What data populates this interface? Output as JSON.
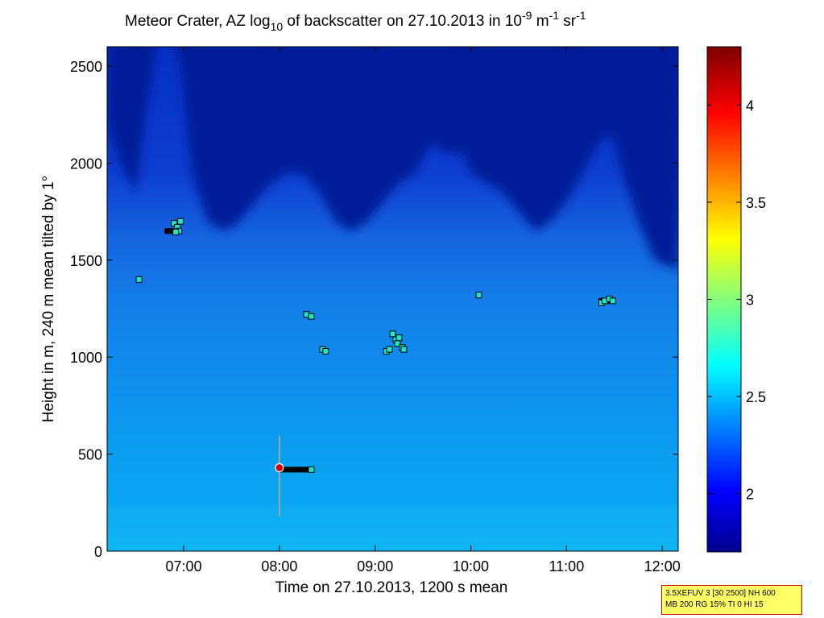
{
  "chart_data": {
    "type": "heatmap",
    "title_prefix": "Meteor Crater, AZ log",
    "title_sub": "10",
    "title_mid": " of backscatter on 27.10.2013 in 10",
    "title_exp1": "-9",
    "title_unit1": " m",
    "title_exp2": "-1",
    "title_unit2": " sr",
    "title_exp3": "-1",
    "xlabel": "Time on 27.10.2013, 1200 s mean",
    "ylabel": "Height in m, 240 m mean tilted by 1°",
    "xlim": [
      "06:12",
      "12:10"
    ],
    "ylim": [
      0,
      2600
    ],
    "xticks": [
      "07:00",
      "08:00",
      "09:00",
      "10:00",
      "11:00",
      "12:00"
    ],
    "yticks": [
      0,
      500,
      1000,
      1500,
      2000,
      2500
    ],
    "colorbar": {
      "min": 1.7,
      "max": 4.3,
      "ticks": [
        2,
        2.5,
        3,
        3.5,
        4
      ],
      "colormap": "jet"
    },
    "colors": {
      "background_max": "#001f99",
      "field_low": "#0c50e6",
      "field_mid": "#1e7ff4",
      "surface": "#0aa8f2"
    },
    "cloud_points": [
      {
        "time": "06:32",
        "height": 1400
      },
      {
        "time": "06:54",
        "height": 1690
      },
      {
        "time": "06:56",
        "height": 1670
      },
      {
        "time": "06:57",
        "height": 1650
      },
      {
        "time": "06:55",
        "height": 1645
      },
      {
        "time": "06:58",
        "height": 1700
      },
      {
        "time": "08:17",
        "height": 1220
      },
      {
        "time": "08:20",
        "height": 1210
      },
      {
        "time": "08:27",
        "height": 1040
      },
      {
        "time": "08:29",
        "height": 1030
      },
      {
        "time": "09:07",
        "height": 1030
      },
      {
        "time": "09:09",
        "height": 1040
      },
      {
        "time": "09:11",
        "height": 1120
      },
      {
        "time": "09:13",
        "height": 1090
      },
      {
        "time": "09:14",
        "height": 1070
      },
      {
        "time": "09:15",
        "height": 1100
      },
      {
        "time": "09:17",
        "height": 1050
      },
      {
        "time": "09:18",
        "height": 1040
      },
      {
        "time": "10:05",
        "height": 1320
      },
      {
        "time": "11:22",
        "height": 1280
      },
      {
        "time": "11:24",
        "height": 1290
      },
      {
        "time": "11:27",
        "height": 1300
      },
      {
        "time": "11:29",
        "height": 1290
      },
      {
        "time": "08:20",
        "height": 420
      }
    ],
    "cloud_lines": [
      {
        "start": "06:48",
        "end": "06:55",
        "height": 1650
      },
      {
        "start": "08:00",
        "end": "08:20",
        "height": 420
      },
      {
        "start": "11:20",
        "end": "11:28",
        "height": 1290
      }
    ],
    "marker": {
      "time": "08:00",
      "height": 430
    }
  },
  "info": {
    "line1": "3.5XEFUV 3 [30 2500] NH 600",
    "line2": "MB 200 RG 15% TI 0 HI 15"
  }
}
